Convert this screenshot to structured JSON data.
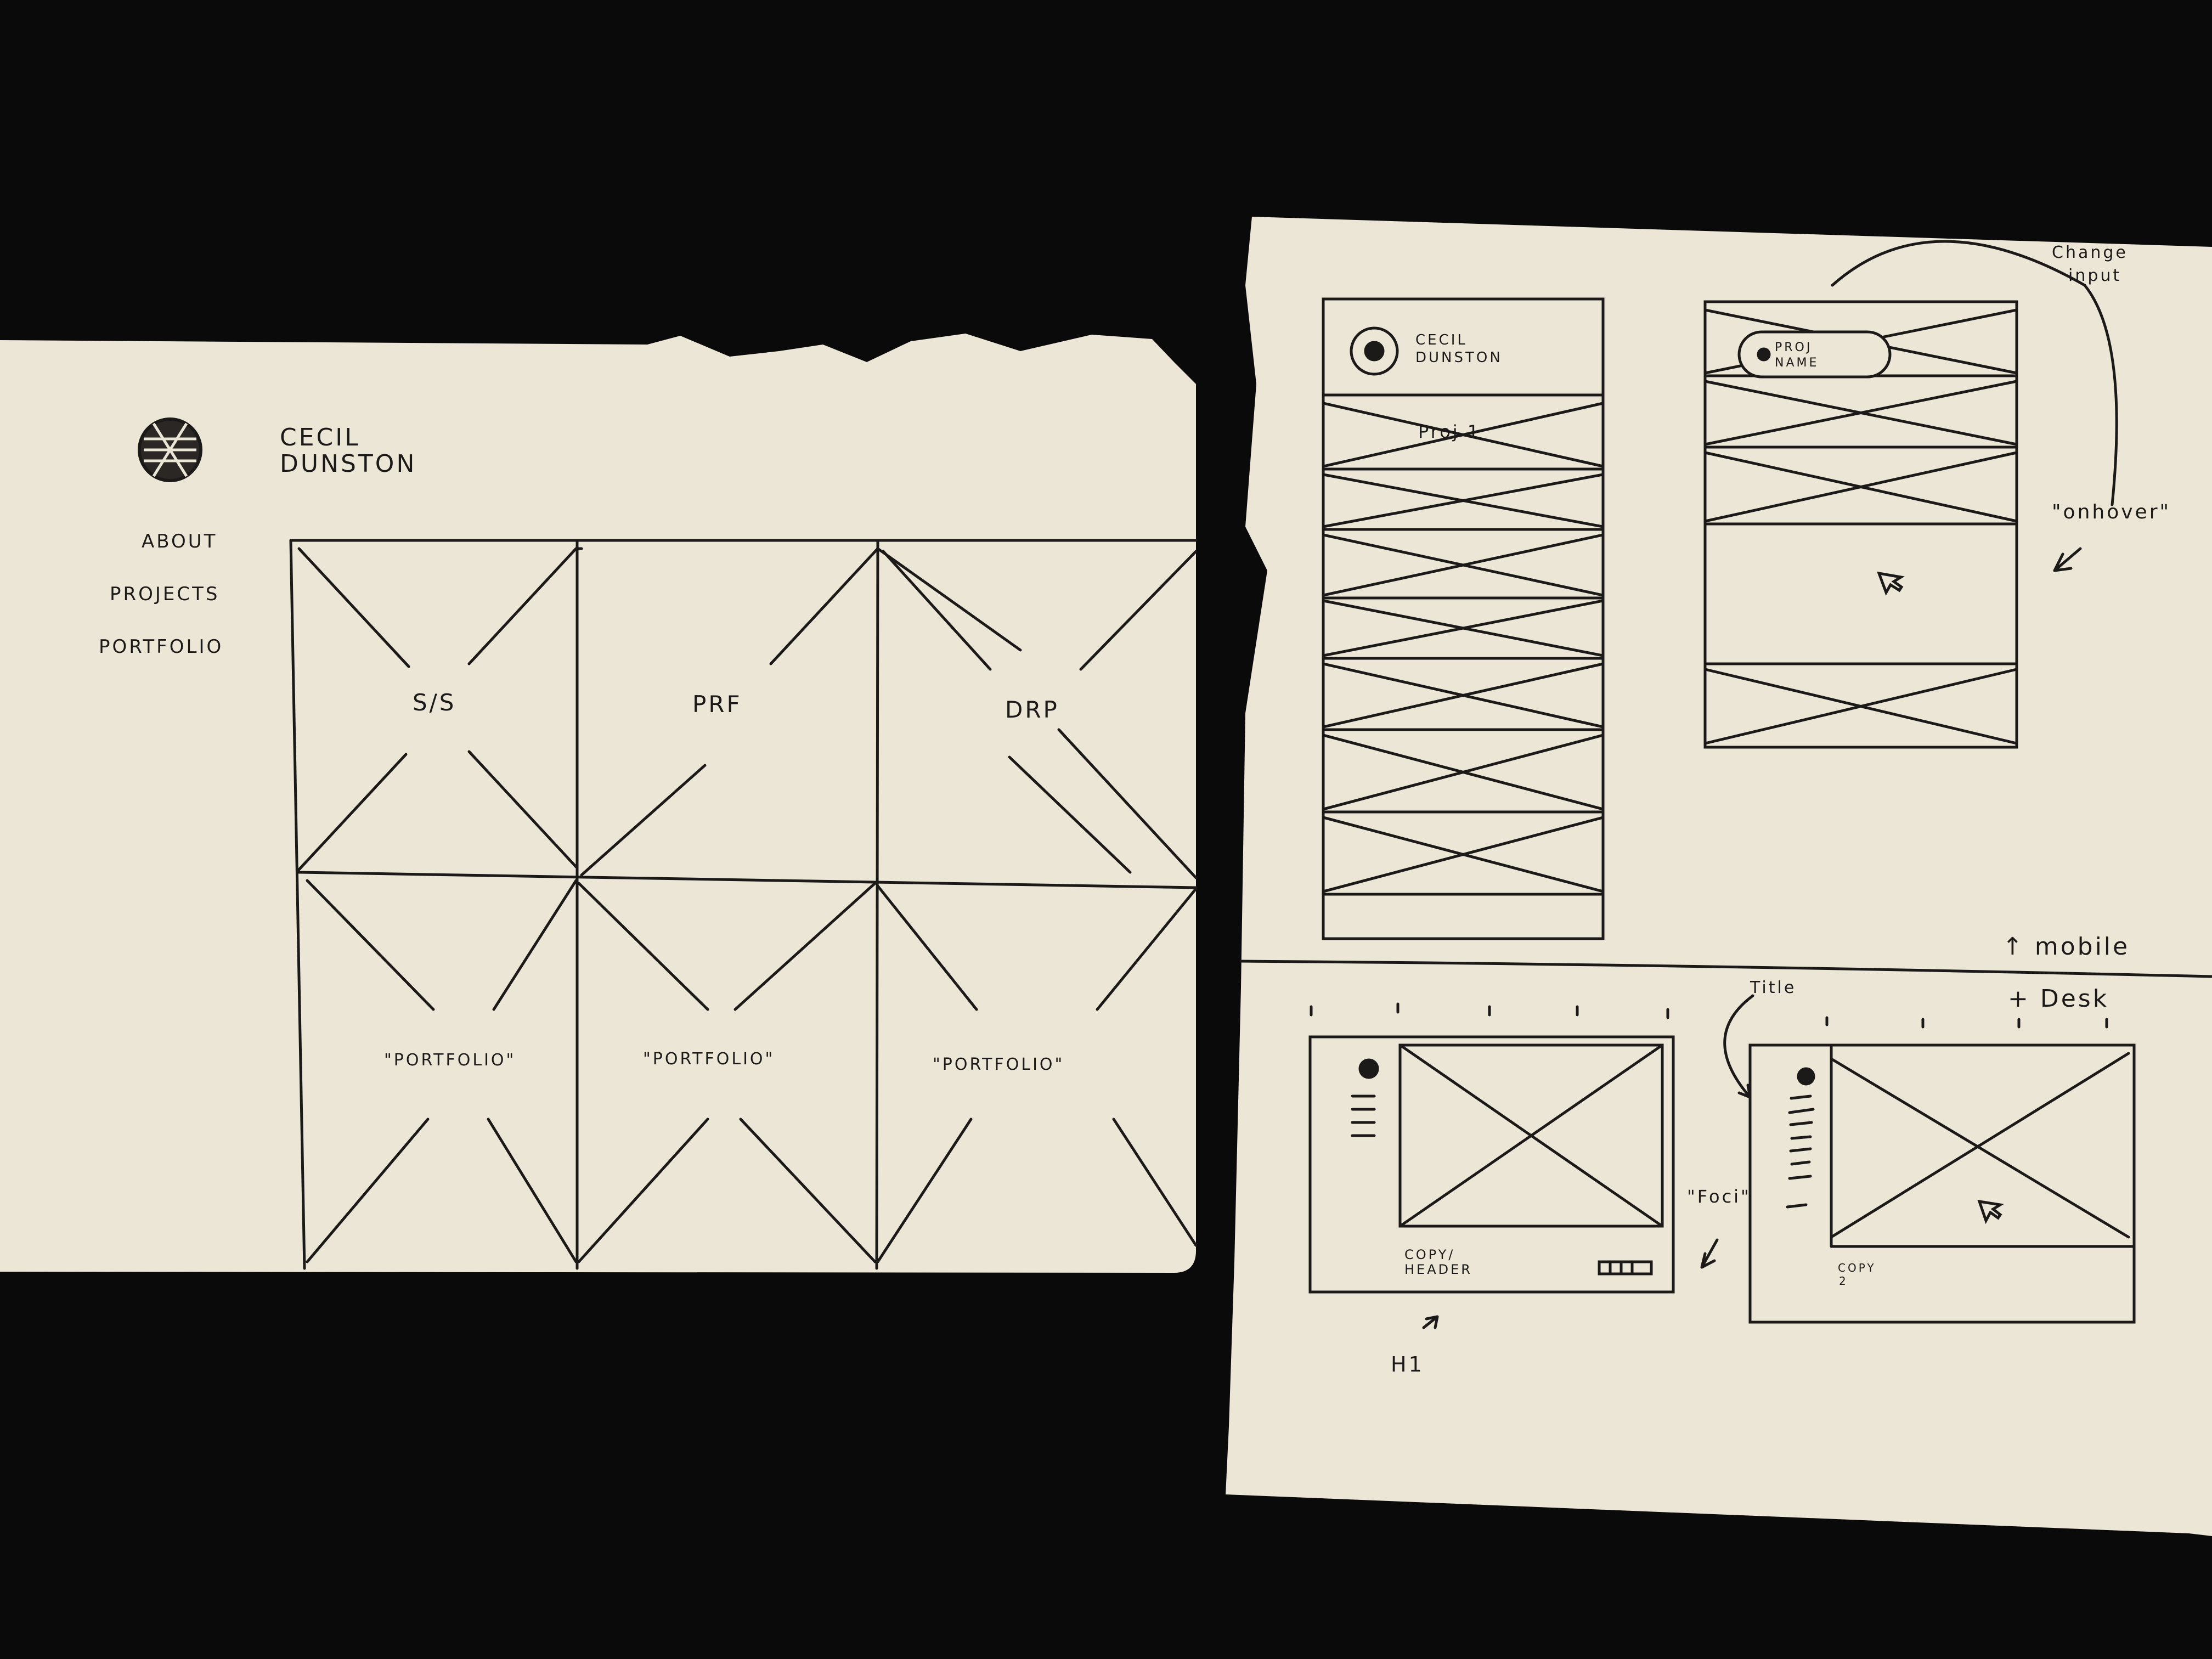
{
  "brand": {
    "name_line1": "CECIL",
    "name_line2": "DUNSTON"
  },
  "nav": {
    "items": [
      "ABOUT",
      "PROJECTS",
      "PORTFOLIO"
    ]
  },
  "grid": {
    "tiles_row1": [
      "S/S",
      "PRF",
      "DRP"
    ],
    "tiles_row2": [
      "\"PORTFOLIO\"",
      "\"PORTFOLIO\"",
      "\"PORTFOLIO\""
    ]
  },
  "mobile_sketch": {
    "logo_text_line1": "CECIL",
    "logo_text_line2": "DUNSTON",
    "item1": "Proj 1",
    "pill_line1": "PROJ",
    "pill_line2": "NAME",
    "annotation_top_line1": "Change",
    "annotation_top_line2": "input",
    "annotation_hover": "\"onhover\"",
    "section_label": "↑ mobile"
  },
  "desktop_sketch": {
    "section_label": "+ Desk",
    "title_note": "Title",
    "focus_note": "\"Foci\"",
    "copy_header_line1": "COPY/",
    "copy_header_line2": "HEADER",
    "copy_line1": "COPY",
    "copy_line2": "2",
    "h1_note": "H1"
  },
  "colors": {
    "background": "#0b0a0a",
    "paper": "#ece6d6",
    "ink": "#1c1a18"
  }
}
